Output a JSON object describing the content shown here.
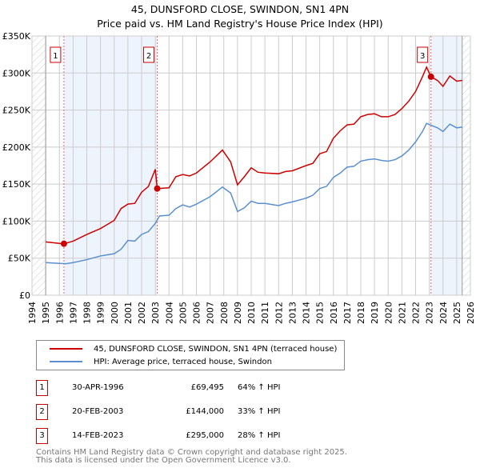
{
  "chart_data": {
    "type": "line",
    "title": "45, DUNSFORD CLOSE, SWINDON, SN1 4PN",
    "subtitle": "Price paid vs. HM Land Registry's House Price Index (HPI)",
    "xlim": [
      1994,
      2026
    ],
    "ylim": [
      0,
      350000
    ],
    "x_ticks": [
      "1994",
      "1995",
      "1996",
      "1997",
      "1998",
      "1999",
      "2000",
      "2001",
      "2002",
      "2003",
      "2004",
      "2005",
      "2006",
      "2007",
      "2008",
      "2009",
      "2010",
      "2011",
      "2012",
      "2013",
      "2014",
      "2015",
      "2016",
      "2017",
      "2018",
      "2019",
      "2020",
      "2021",
      "2022",
      "2023",
      "2024",
      "2025",
      "2026"
    ],
    "y_ticks": [
      {
        "v": 0,
        "l": "£0"
      },
      {
        "v": 50000,
        "l": "£50K"
      },
      {
        "v": 100000,
        "l": "£100K"
      },
      {
        "v": 150000,
        "l": "£150K"
      },
      {
        "v": 200000,
        "l": "£200K"
      },
      {
        "v": 250000,
        "l": "£250K"
      },
      {
        "v": 300000,
        "l": "£300K"
      },
      {
        "v": 350000,
        "l": "£350K"
      }
    ],
    "series": [
      {
        "name": "45, DUNSFORD CLOSE, SWINDON, SN1 4PN (terraced house)",
        "color": "#cc0000",
        "x": [
          1995,
          1996,
          1996.33,
          1997,
          1998,
          1999,
          2000,
          2000.5,
          2001,
          2001.5,
          2002,
          2002.5,
          2003,
          2003.14,
          2004,
          2004.5,
          2005,
          2005.5,
          2006,
          2007,
          2007.9,
          2008.5,
          2009,
          2009.5,
          2010,
          2010.5,
          2011,
          2012,
          2012.5,
          2013,
          2014,
          2014.5,
          2015,
          2015.5,
          2016,
          2016.5,
          2017,
          2017.5,
          2018,
          2018.5,
          2019,
          2019.5,
          2020,
          2020.5,
          2021,
          2021.5,
          2022,
          2022.5,
          2022.8,
          2023.12,
          2023.6,
          2024,
          2024.5,
          2025,
          2025.4
        ],
        "y": [
          72,
          70,
          69.5,
          73,
          82,
          90,
          101,
          117,
          123,
          124,
          139,
          147,
          170,
          144,
          145,
          160,
          163,
          161,
          165,
          180,
          196,
          180,
          149,
          160,
          172,
          166,
          165,
          164,
          167,
          168,
          175,
          178,
          191,
          194,
          212,
          222,
          230,
          231,
          241,
          244,
          245,
          241,
          241,
          244,
          252,
          262,
          275,
          295,
          308,
          295,
          290,
          282,
          296,
          289,
          290
        ]
      },
      {
        "name": "HPI: Average price, terraced house, Swindon",
        "color": "#5b8fd0",
        "x": [
          1995,
          1996,
          1996.5,
          1997,
          1998,
          1999,
          2000,
          2000.5,
          2001,
          2001.5,
          2002,
          2002.5,
          2003,
          2003.3,
          2004,
          2004.5,
          2005,
          2005.5,
          2006,
          2007,
          2007.9,
          2008.5,
          2009,
          2009.5,
          2010,
          2010.5,
          2011,
          2012,
          2012.5,
          2013,
          2014,
          2014.5,
          2015,
          2015.5,
          2016,
          2016.5,
          2017,
          2017.5,
          2018,
          2018.5,
          2019,
          2019.5,
          2020,
          2020.5,
          2021,
          2021.5,
          2022,
          2022.5,
          2022.8,
          2023.2,
          2023.6,
          2024,
          2024.5,
          2025,
          2025.4
        ],
        "y": [
          44,
          43,
          42.5,
          44,
          48,
          53,
          56,
          62,
          74,
          73,
          82,
          86,
          97,
          107,
          108,
          117,
          122,
          119,
          123,
          133,
          146,
          138,
          113,
          118,
          127,
          124,
          124,
          121,
          124,
          126,
          131,
          135,
          144,
          147,
          159,
          165,
          173,
          174,
          181,
          183,
          184,
          182,
          181,
          183,
          188,
          196,
          207,
          221,
          232,
          229,
          226,
          221,
          231,
          226,
          227
        ]
      }
    ],
    "y_unit": "thousands GBP",
    "sales": [
      {
        "label": "1",
        "x": 1996.33,
        "price": 69495,
        "date": "30-APR-1996",
        "price_text": "£69,495",
        "hpi": "64% ↑ HPI"
      },
      {
        "label": "2",
        "x": 2003.14,
        "price": 144000,
        "date": "20-FEB-2003",
        "price_text": "£144,000",
        "hpi": "33% ↑ HPI"
      },
      {
        "label": "3",
        "x": 2023.12,
        "price": 295000,
        "date": "14-FEB-2023",
        "price_text": "£295,000",
        "hpi": "28% ↑ HPI"
      }
    ],
    "shaded_ranges": [
      [
        1996.33,
        2003.14
      ],
      [
        2023.12,
        2025.4
      ]
    ],
    "hatched_ranges": [
      [
        1994,
        1995
      ],
      [
        2025.4,
        2026
      ]
    ]
  },
  "footer": [
    "Contains HM Land Registry data © Crown copyright and database right 2025.",
    "This data is licensed under the Open Government Licence v3.0."
  ]
}
